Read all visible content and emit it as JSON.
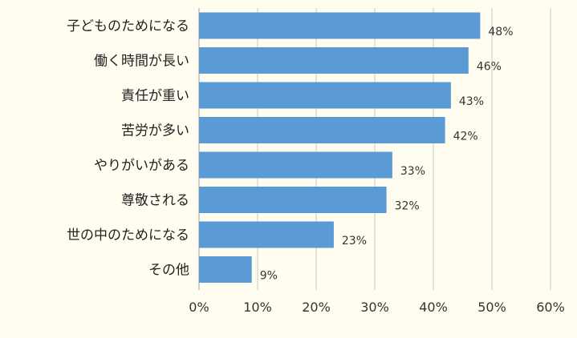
{
  "chart_data": {
    "type": "bar",
    "orientation": "horizontal",
    "categories": [
      "子どものためになる",
      "働く時間が長い",
      "責任が重い",
      "苦労が多い",
      "やりがいがある",
      "尊敬される",
      "世の中のためになる",
      "その他"
    ],
    "values": [
      48,
      46,
      43,
      42,
      33,
      32,
      23,
      9
    ],
    "value_labels": [
      "48%",
      "46%",
      "43%",
      "42%",
      "33%",
      "32%",
      "23%",
      "9%"
    ],
    "xlim": [
      0,
      60
    ],
    "x_ticks": [
      0,
      10,
      20,
      30,
      40,
      50,
      60
    ],
    "x_tick_labels": [
      "0%",
      "10%",
      "20%",
      "30%",
      "40%",
      "50%",
      "60%"
    ],
    "title": "",
    "xlabel": "",
    "ylabel": "",
    "grid": "vertical",
    "legend": "none",
    "bar_color": "#5b9bd5",
    "background_color": "#fffdf0"
  }
}
